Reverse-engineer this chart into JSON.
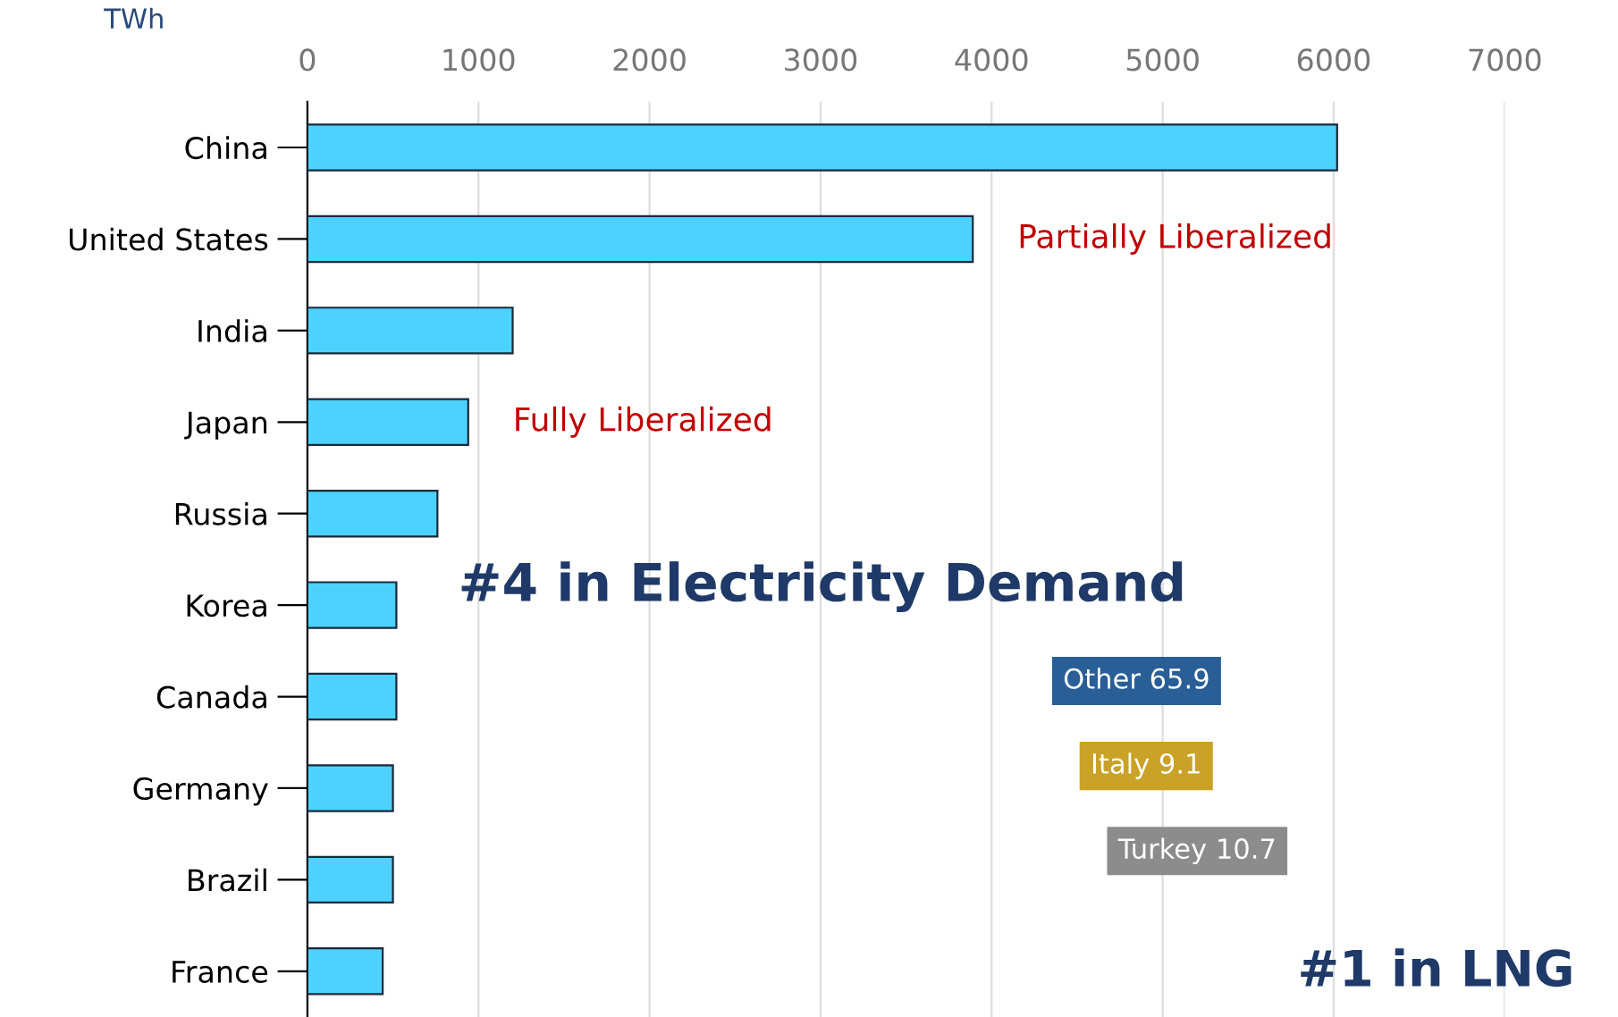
{
  "chart_data": [
    {
      "type": "bar",
      "orientation": "horizontal",
      "title": "#4 in Electricity Demand",
      "xlabel": "TWh",
      "categories": [
        "China",
        "United States",
        "India",
        "Japan",
        "Russia",
        "Korea",
        "Canada",
        "Germany",
        "Brazil",
        "France"
      ],
      "values": [
        6020,
        3890,
        1200,
        940,
        760,
        520,
        520,
        500,
        500,
        440
      ],
      "color": "#4dd2ff",
      "xlim": [
        0,
        7000
      ],
      "xticks": [
        0,
        1000,
        2000,
        3000,
        4000,
        5000,
        6000,
        7000
      ],
      "grid": "x",
      "annotations": [
        {
          "text": "Partially Liberalized",
          "x": 3890,
          "y": "United States"
        },
        {
          "text": "Fully Liberalized",
          "x": 940,
          "y": "Japan"
        }
      ]
    },
    {
      "type": "other",
      "title": "#1 in LNG",
      "annotations": [
        "Other 65.9",
        "Italy 9.1",
        "Turkey 10.7"
      ],
      "colors": [
        "#2a5e96",
        "#c9a227",
        "#8c8c8c"
      ]
    }
  ]
}
